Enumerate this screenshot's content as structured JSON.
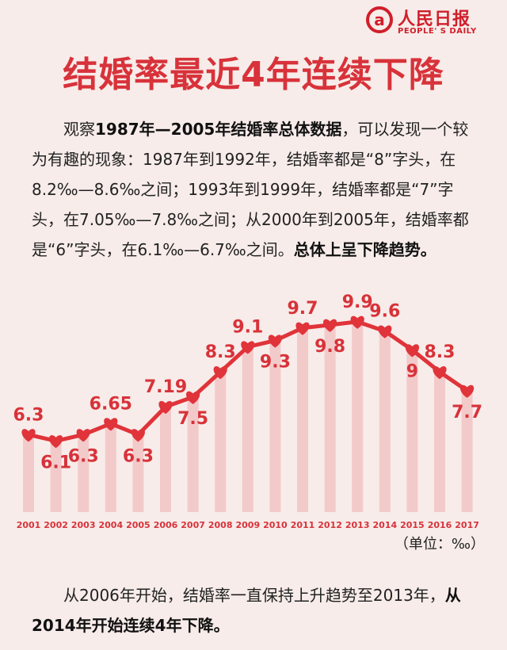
{
  "logo": {
    "cn": "人民日报",
    "en": "PEOPLE' S DAILY"
  },
  "title": "结婚率最近4年连续下降",
  "intro": {
    "part1": "观察",
    "bold1": "1987年—2005年结婚率总体数据",
    "part2": "，可以发现一个较为有趣的现象：1987年到1992年，结婚率都是“8”字头，在8.2‰—8.6‰之间；1993年到1999年，结婚率都是“7”字头，在7.05‰—7.8‰之间；从2000年到2005年，结婚率都是“6”字头，在6.1‰—6.7‰之间。",
    "bold2": "总体上呈下降趋势。"
  },
  "unit_label": "（单位：‰）",
  "outro": {
    "part1": "从2006年开始，结婚率一直保持上升趋势至2013年，",
    "bold1": "从2014年开始连续4年下降。"
  },
  "colors": {
    "accent": "#d8323a",
    "bar": "#f2c4c4",
    "line": "#e0333a"
  },
  "chart_data": {
    "type": "line",
    "title": "结婚率最近4年连续下降",
    "xlabel": "",
    "ylabel": "（单位：‰）",
    "categories": [
      "2001",
      "2002",
      "2003",
      "2004",
      "2005",
      "2006",
      "2007",
      "2008",
      "2009",
      "2010",
      "2011",
      "2012",
      "2013",
      "2014",
      "2015",
      "2016",
      "2017"
    ],
    "values": [
      6.3,
      6.1,
      6.3,
      6.65,
      6.3,
      7.19,
      7.5,
      8.3,
      9.1,
      9.3,
      9.7,
      9.8,
      9.9,
      9.6,
      9,
      8.3,
      7.7
    ],
    "data_labels": [
      "6.3",
      "6.1",
      "6.3",
      "6.65",
      "6.3",
      "7.19",
      "7.5",
      "8.3",
      "9.1",
      "9.3",
      "9.7",
      "9.8",
      "9.9",
      "9.6",
      "9",
      "8.3",
      "7.7"
    ],
    "ylim": [
      5.5,
      10.2
    ],
    "grid": false,
    "legend": "none"
  }
}
